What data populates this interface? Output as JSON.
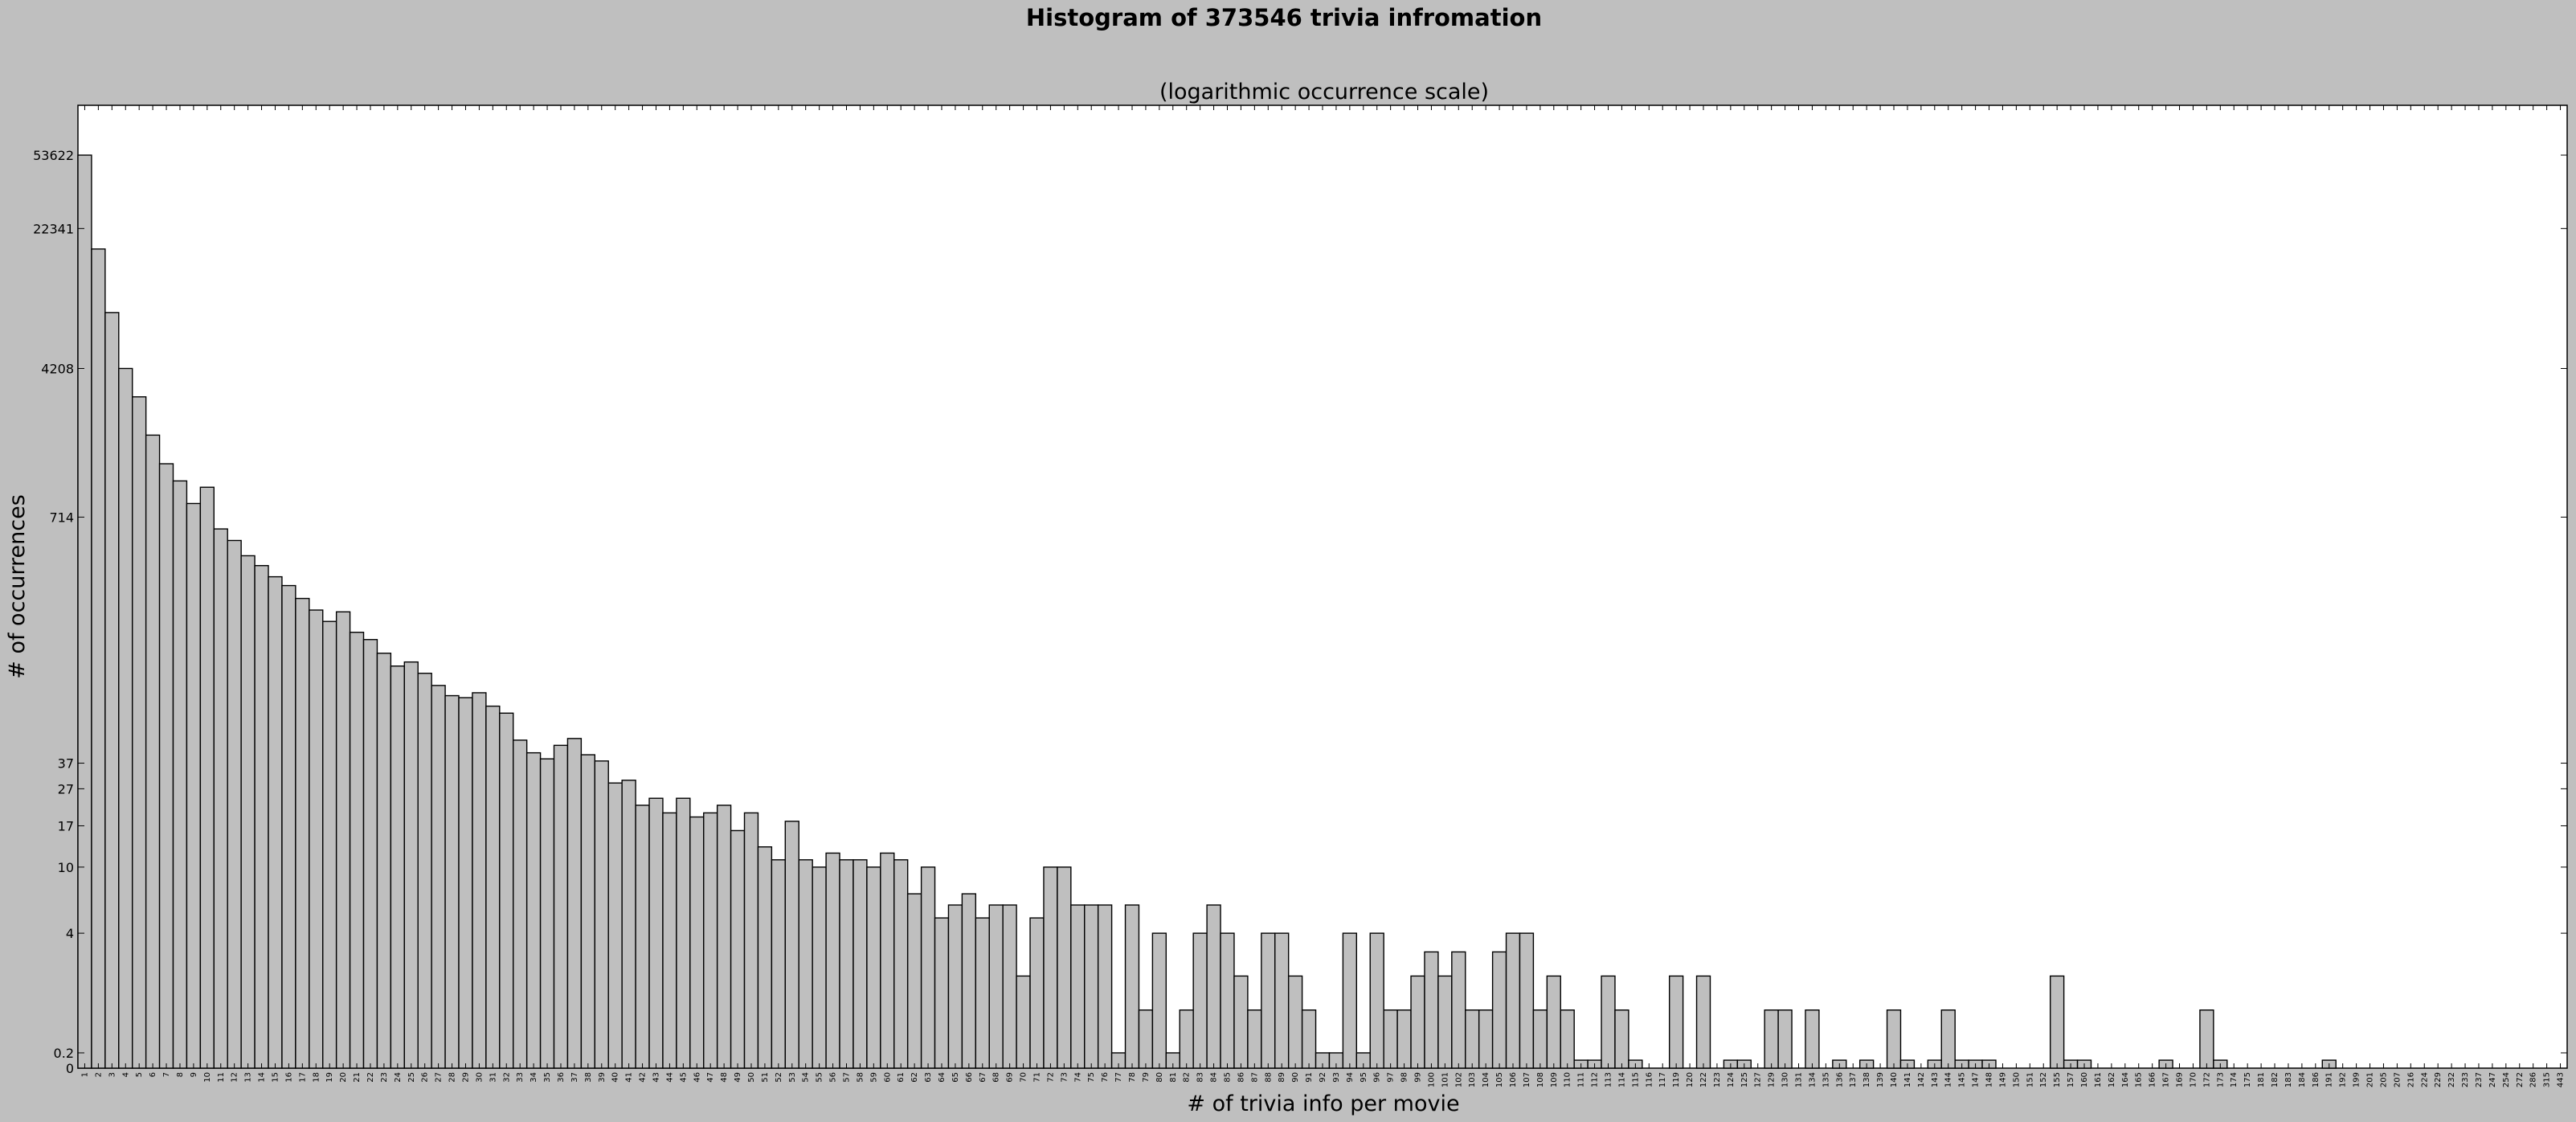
{
  "chart_data": {
    "type": "bar",
    "title": "Histogram of 373546 trivia infromation",
    "subtitle": "(logarithmic occurrence scale)",
    "xlabel": "# of trivia info per movie",
    "ylabel": "# of occurrences",
    "ytick_labels": [
      "0",
      "0.2",
      "4",
      "10",
      "17",
      "27",
      "37",
      "714",
      "4208",
      "22341",
      "53622"
    ],
    "ytick_values": [
      0,
      0.2,
      4,
      10,
      17,
      27,
      37,
      714,
      4208,
      22341,
      53622
    ],
    "categories": [
      1,
      2,
      3,
      4,
      5,
      6,
      7,
      8,
      9,
      10,
      11,
      12,
      13,
      14,
      15,
      16,
      17,
      18,
      19,
      20,
      21,
      22,
      23,
      24,
      25,
      26,
      27,
      28,
      29,
      30,
      31,
      32,
      33,
      34,
      35,
      36,
      37,
      38,
      39,
      40,
      41,
      42,
      43,
      44,
      45,
      46,
      47,
      48,
      49,
      50,
      51,
      52,
      53,
      54,
      55,
      56,
      57,
      58,
      59,
      60,
      61,
      62,
      63,
      64,
      65,
      66,
      67,
      68,
      69,
      70,
      71,
      72,
      73,
      74,
      75,
      76,
      77,
      78,
      79,
      80,
      81,
      82,
      83,
      84,
      85,
      86,
      87,
      88,
      89,
      90,
      91,
      92,
      93,
      94,
      95,
      96,
      97,
      98,
      99,
      100,
      101,
      102,
      103,
      104,
      105,
      106,
      107,
      108,
      109,
      110,
      111,
      112,
      113,
      114,
      115,
      116,
      117,
      119,
      120,
      122,
      123,
      124,
      125,
      127,
      129,
      130,
      131,
      134,
      135,
      136,
      137,
      138,
      139,
      140,
      141,
      142,
      143,
      144,
      145,
      147,
      148,
      149,
      150,
      151,
      152,
      155,
      157,
      160,
      161,
      162,
      164,
      165,
      166,
      167,
      169,
      170,
      172,
      173,
      174,
      175,
      181,
      182,
      183,
      184,
      186,
      191,
      192,
      199,
      201,
      205,
      207,
      216,
      224,
      229,
      232,
      233,
      237,
      247,
      254,
      272,
      286,
      315,
      443
    ],
    "values": [
      53622,
      17500,
      8200,
      4208,
      3000,
      1900,
      1350,
      1100,
      840,
      1020,
      620,
      540,
      450,
      400,
      350,
      315,
      270,
      235,
      205,
      230,
      180,
      165,
      140,
      120,
      126,
      110,
      95,
      84,
      82,
      87,
      74,
      68,
      49,
      42,
      39,
      46,
      50,
      41,
      38,
      29,
      30,
      22,
      24,
      20,
      24,
      19,
      20,
      22,
      16,
      20,
      13,
      11,
      18,
      11,
      10,
      12,
      11,
      11,
      10,
      12,
      11,
      7,
      10,
      5,
      6,
      7,
      5,
      6,
      6,
      2,
      5,
      10,
      10,
      6,
      6,
      6,
      0.2,
      6,
      1,
      4,
      0.2,
      1,
      4,
      6,
      4,
      2,
      1,
      4,
      4,
      2,
      1,
      0.2,
      0.2,
      4,
      0.2,
      4,
      1,
      1,
      2,
      3,
      2,
      3,
      1,
      1,
      3,
      4,
      4,
      1,
      2,
      1,
      0.1,
      0.1,
      2,
      1,
      0.1,
      0,
      0,
      2,
      0,
      2,
      0,
      0.1,
      0.1,
      0,
      1,
      1,
      0,
      1,
      0,
      0.1,
      0,
      0.1,
      0,
      1,
      0.1,
      0,
      0.1,
      1,
      0.1,
      0.1,
      0.1,
      0,
      0,
      0,
      0,
      2,
      0.1,
      0.1,
      0,
      0,
      0,
      0,
      0,
      0.1,
      0,
      0,
      1,
      0.1,
      0,
      0,
      0,
      0,
      0,
      0,
      0,
      0.1,
      0,
      0,
      0,
      0,
      0,
      0,
      0,
      0,
      0,
      0,
      0,
      0,
      0,
      0,
      0,
      0,
      0
    ],
    "ylim": [
      0,
      130000
    ],
    "scale": "log",
    "grid": false,
    "legend": "none"
  }
}
